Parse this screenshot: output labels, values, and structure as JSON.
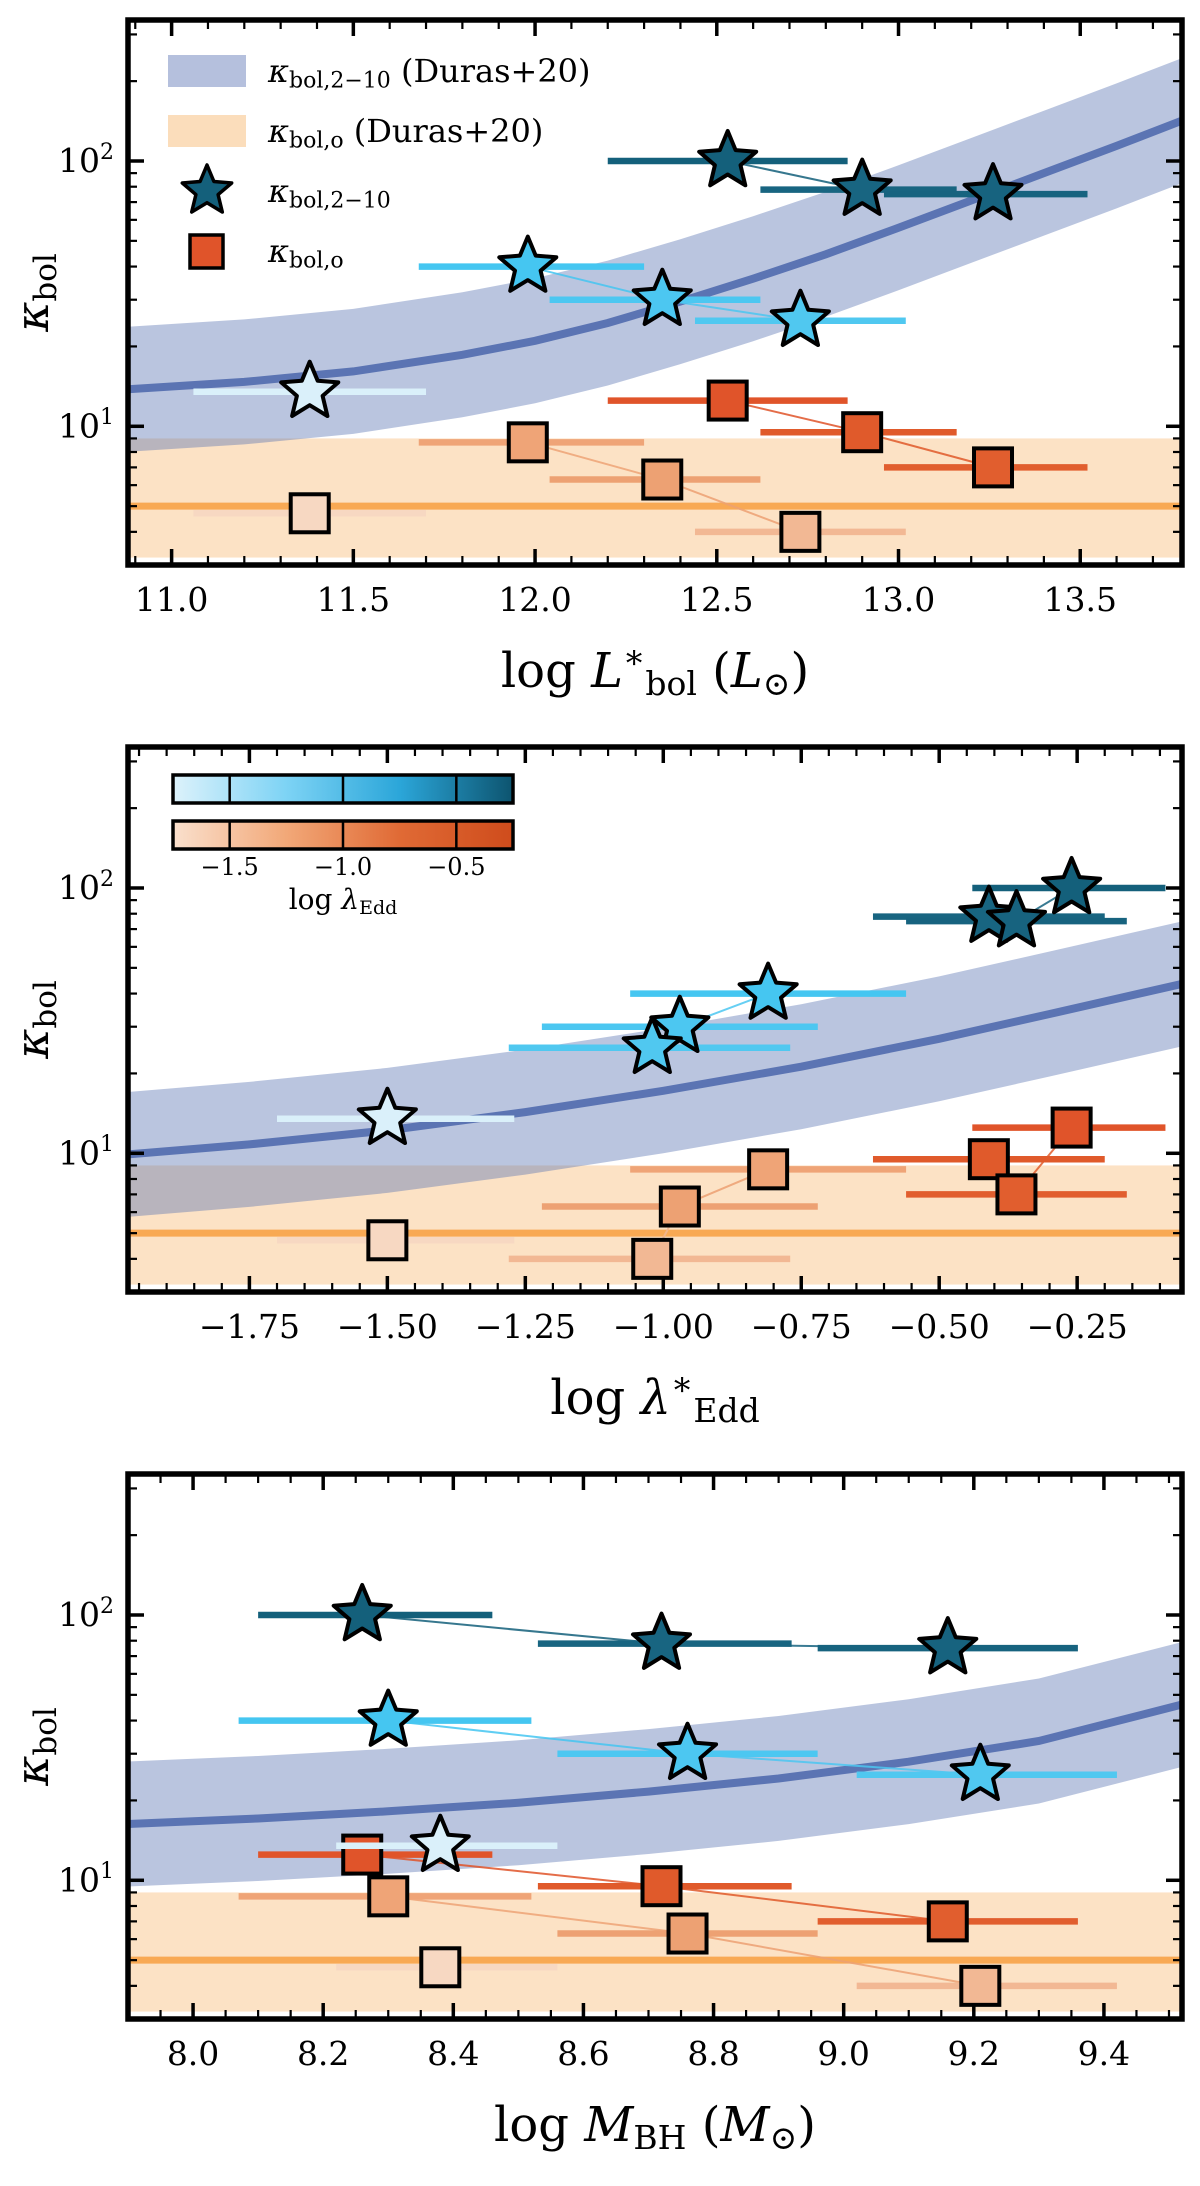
{
  "style": {
    "background": "#ffffff",
    "text_color": "#000000",
    "spine_color": "#000000",
    "spine_width": 5.5,
    "blue_line": "#5b74b3",
    "blue_band": "#5b74b3",
    "blue_band_opacity": 0.42,
    "orange_line": "#f8a954",
    "orange_band": "#f5a64b",
    "orange_band_opacity": 0.32,
    "marker_edge": "#000000"
  },
  "chart_data": {
    "type": "scatter",
    "yscale": "log",
    "ylim": [
      3.0,
      340
    ],
    "blue_band_ratio": 1.72,
    "orange_band": {
      "center": 5.0,
      "low": 3.2,
      "high": 9.0
    },
    "ylabel": [
      {
        "t": "κ",
        "i": true
      },
      {
        "t": "bol",
        "sub": true
      }
    ],
    "yticks": [
      {
        "v": 10,
        "label": [
          {
            "t": "10"
          },
          {
            "t": "1",
            "sup": true
          }
        ]
      },
      {
        "v": 100,
        "label": [
          {
            "t": "10"
          },
          {
            "t": "2",
            "sup": true
          }
        ]
      }
    ],
    "y_minor": [
      4,
      5,
      6,
      7,
      8,
      9,
      20,
      30,
      40,
      50,
      60,
      70,
      80,
      90,
      200,
      300
    ],
    "points": [
      {
        "id": "obj1",
        "group": "pale",
        "logL": 11.38,
        "logL_err": [
          11.06,
          11.7
        ],
        "lam": -1.5,
        "lam_err": [
          -1.7,
          -1.27
        ],
        "logM": 8.38,
        "logM_err": [
          8.22,
          8.56
        ],
        "kx": 13.5,
        "ko": 4.7,
        "star_color": "#daf0fa",
        "sq_color": "#f7d8c2"
      },
      {
        "id": "obj2",
        "group": "mid",
        "logL": 11.98,
        "logL_err": [
          11.68,
          12.3
        ],
        "lam": -0.81,
        "lam_err": [
          -1.06,
          -0.56
        ],
        "logM": 8.3,
        "logM_err": [
          8.07,
          8.52
        ],
        "kx": 40,
        "ko": 8.7,
        "star_color": "#45c6f1",
        "sq_color": "#efa477"
      },
      {
        "id": "obj3",
        "group": "mid",
        "logL": 12.35,
        "logL_err": [
          12.04,
          12.62
        ],
        "lam": -0.97,
        "lam_err": [
          -1.22,
          -0.72
        ],
        "logM": 8.76,
        "logM_err": [
          8.56,
          8.96
        ],
        "kx": 30,
        "ko": 6.3,
        "star_color": "#4cc7f1",
        "sq_color": "#eda173"
      },
      {
        "id": "obj4",
        "group": "dark",
        "logL": 12.53,
        "logL_err": [
          12.2,
          12.86
        ],
        "lam": -0.26,
        "lam_err": [
          -0.44,
          -0.09
        ],
        "logM": 8.26,
        "logM_err": [
          8.1,
          8.46
        ],
        "kx": 100,
        "ko": 12.5,
        "star_color": "#14607b",
        "sq_color": "#e0542a"
      },
      {
        "id": "obj5",
        "group": "mid",
        "logL": 12.73,
        "logL_err": [
          12.44,
          13.02
        ],
        "lam": -1.02,
        "lam_err": [
          -1.28,
          -0.77
        ],
        "logM": 9.21,
        "logM_err": [
          9.02,
          9.42
        ],
        "kx": 25,
        "ko": 4.0,
        "star_color": "#50c8f0",
        "sq_color": "#f2b894"
      },
      {
        "id": "obj6",
        "group": "dark",
        "logL": 12.9,
        "logL_err": [
          12.62,
          13.16
        ],
        "lam": -0.41,
        "lam_err": [
          -0.62,
          -0.2
        ],
        "logM": 8.72,
        "logM_err": [
          8.53,
          8.92
        ],
        "kx": 78,
        "ko": 9.5,
        "star_color": "#186581",
        "sq_color": "#e05a2b"
      },
      {
        "id": "obj7",
        "group": "dark",
        "logL": 13.26,
        "logL_err": [
          12.96,
          13.52
        ],
        "lam": -0.36,
        "lam_err": [
          -0.56,
          -0.16
        ],
        "logM": 9.16,
        "logM_err": [
          8.96,
          9.36
        ],
        "kx": 75,
        "ko": 7.0,
        "star_color": "#17637f",
        "sq_color": "#e15e2e"
      }
    ],
    "legend": [
      {
        "patch": true,
        "color": "#5b74b3",
        "opacity": 0.45,
        "label": [
          {
            "t": "κ",
            "i": true
          },
          {
            "t": "bol,2−10",
            "sub": true
          },
          {
            "t": " (Duras+20)"
          }
        ]
      },
      {
        "patch": true,
        "color": "#f5a64b",
        "opacity": 0.38,
        "label": [
          {
            "t": "κ",
            "i": true
          },
          {
            "t": "bol,o",
            "sub": true
          },
          {
            "t": " (Duras+20)"
          }
        ]
      },
      {
        "marker": "star",
        "color": "#14607b",
        "label": [
          {
            "t": "κ",
            "i": true
          },
          {
            "t": "bol,2−10",
            "sub": true
          }
        ]
      },
      {
        "marker": "square",
        "color": "#e0542a",
        "label": [
          {
            "t": "κ",
            "i": true
          },
          {
            "t": "bol,o",
            "sub": true
          }
        ]
      }
    ],
    "colorbar": {
      "blue": [
        "#ddf2fb",
        "#7dd3f5",
        "#2ba6d9",
        "#0d546f"
      ],
      "orange": [
        "#fae0cd",
        "#f2a878",
        "#e06a35",
        "#cf4c1c"
      ],
      "range": [
        -1.75,
        -0.25
      ],
      "ticks": [
        -1.5,
        -1.0,
        -0.5
      ],
      "tick_labels": [
        "−1.5",
        "−1.0",
        "−0.5"
      ],
      "label": [
        {
          "t": "log "
        },
        {
          "t": "λ",
          "i": true
        },
        {
          "t": "Edd",
          "sub": true
        }
      ]
    },
    "panels": [
      {
        "id": "kbol-vs-lbol",
        "x_key": "logL",
        "xerr_key": "logL_err",
        "xlim": [
          10.88,
          13.78
        ],
        "xticks": [
          11.0,
          11.5,
          12.0,
          12.5,
          13.0,
          13.5
        ],
        "xtick_labels": [
          "11.0",
          "11.5",
          "12.0",
          "12.5",
          "13.0",
          "13.5"
        ],
        "x_minor": 0.1,
        "xlabel": [
          {
            "t": "log "
          },
          {
            "t": "L",
            "i": true
          },
          {
            "t": "∗",
            "sup": true
          },
          {
            "t": "bol",
            "sub": true
          },
          {
            "t": " ("
          },
          {
            "t": "L",
            "i": true
          },
          {
            "t": "⊙",
            "sub": true
          },
          {
            "t": ")"
          }
        ],
        "blue_curve": [
          [
            10.88,
            13.8
          ],
          [
            11.2,
            14.7
          ],
          [
            11.5,
            16.1
          ],
          [
            11.8,
            18.6
          ],
          [
            12.0,
            21.0
          ],
          [
            12.2,
            24.5
          ],
          [
            12.4,
            29.5
          ],
          [
            12.6,
            36.0
          ],
          [
            12.8,
            44.5
          ],
          [
            13.0,
            56.0
          ],
          [
            13.2,
            71.0
          ],
          [
            13.4,
            90.0
          ],
          [
            13.6,
            114.0
          ],
          [
            13.78,
            142.0
          ]
        ],
        "show_legend": true,
        "show_colorbars": false
      },
      {
        "id": "kbol-vs-ledd",
        "x_key": "lam",
        "xerr_key": "lam_err",
        "xlim": [
          -1.97,
          -0.06
        ],
        "xticks": [
          -1.75,
          -1.5,
          -1.25,
          -1.0,
          -0.75,
          -0.5,
          -0.25
        ],
        "xtick_labels": [
          "−1.75",
          "−1.50",
          "−1.25",
          "−1.00",
          "−0.75",
          "−0.50",
          "−0.25"
        ],
        "x_minor": 0.05,
        "xlabel": [
          {
            "t": "log "
          },
          {
            "t": "λ",
            "i": true
          },
          {
            "t": "∗",
            "sup": true
          },
          {
            "t": "Edd",
            "sub": true
          }
        ],
        "blue_curve": [
          [
            -1.97,
            9.9
          ],
          [
            -1.75,
            10.8
          ],
          [
            -1.5,
            12.2
          ],
          [
            -1.25,
            14.3
          ],
          [
            -1.0,
            17.2
          ],
          [
            -0.75,
            21.2
          ],
          [
            -0.5,
            27.0
          ],
          [
            -0.3,
            33.5
          ],
          [
            -0.06,
            43.5
          ]
        ],
        "show_legend": false,
        "show_colorbars": true
      },
      {
        "id": "kbol-vs-mbh",
        "x_key": "logM",
        "xerr_key": "logM_err",
        "xlim": [
          7.9,
          9.52
        ],
        "xticks": [
          8.0,
          8.2,
          8.4,
          8.6,
          8.8,
          9.0,
          9.2,
          9.4
        ],
        "xtick_labels": [
          "8.0",
          "8.2",
          "8.4",
          "8.6",
          "8.8",
          "9.0",
          "9.2",
          "9.4"
        ],
        "x_minor": 0.05,
        "xlabel": [
          {
            "t": "log "
          },
          {
            "t": "M",
            "i": true
          },
          {
            "t": "BH",
            "sub": true
          },
          {
            "t": " ("
          },
          {
            "t": "M",
            "i": true
          },
          {
            "t": "⊙",
            "sub": true
          },
          {
            "t": ")"
          }
        ],
        "blue_curve": [
          [
            7.9,
            16.3
          ],
          [
            8.1,
            17.1
          ],
          [
            8.3,
            18.2
          ],
          [
            8.5,
            19.6
          ],
          [
            8.7,
            21.6
          ],
          [
            8.9,
            24.2
          ],
          [
            9.1,
            28.0
          ],
          [
            9.3,
            33.5
          ],
          [
            9.52,
            46.0
          ]
        ],
        "show_legend": false,
        "show_colorbars": false
      }
    ]
  }
}
